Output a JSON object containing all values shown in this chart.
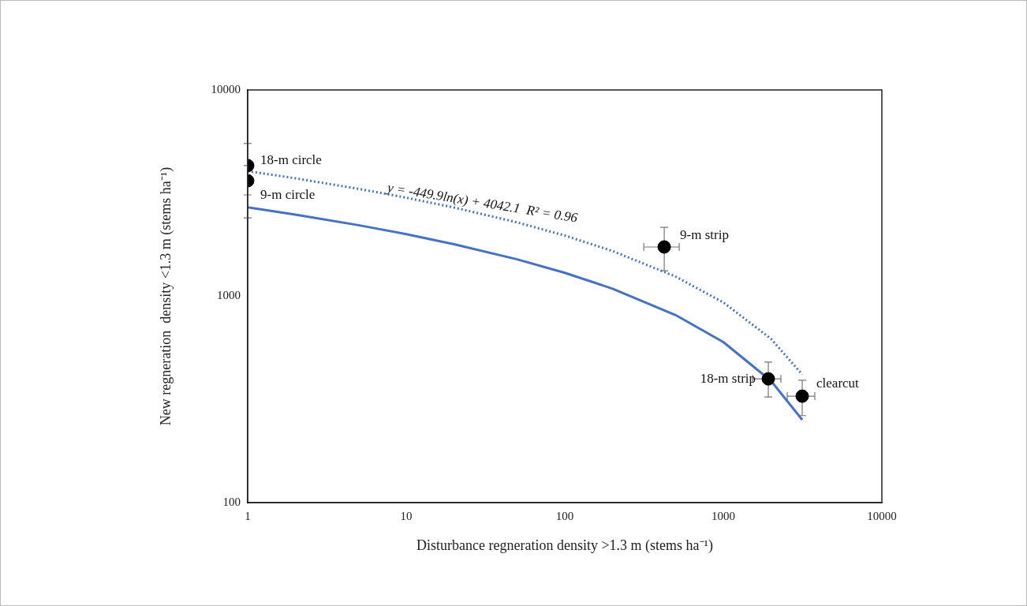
{
  "chart_data": {
    "type": "scatter",
    "xlabel": "Disturbance regneration density >1.3 m (stems ha⁻¹)",
    "ylabel": "New regneration  density <1.3 m (stems ha⁻¹)",
    "log": "xy",
    "grid": false,
    "legend": false,
    "xlim": [
      1,
      10000
    ],
    "xticks": [
      1,
      10,
      100,
      1000,
      10000
    ],
    "ylim": [
      100,
      10000
    ],
    "yticks": [
      100,
      1000,
      10000
    ],
    "series": [
      {
        "type": "line",
        "color": "#4472c4",
        "line_style": "dotted",
        "marker": "none",
        "x": [
          1,
          2,
          5,
          10,
          20,
          50,
          100,
          200,
          500,
          1000,
          2000,
          3146
        ],
        "values": [
          4042,
          3730,
          3318,
          3006,
          2694,
          2282,
          1970,
          1658,
          1246,
          934,
          622,
          418
        ]
      },
      {
        "type": "line",
        "color": "#4472c4",
        "line_style": "solid",
        "marker": "none",
        "x": [
          1,
          2,
          5,
          10,
          20,
          50,
          100,
          200,
          500,
          1000,
          2000,
          3146
        ],
        "values": [
          2700,
          2489,
          2211,
          2000,
          1789,
          1511,
          1300,
          1089,
          811,
          600,
          389,
          252
        ]
      },
      {
        "color": "#000000",
        "marker": "circle",
        "x": [
          1,
          1,
          424,
          1922,
          3146
        ],
        "values": [
          4300,
          3630,
          1734,
          398,
          328
        ],
        "errors": [
          [
            3100,
            5500
          ],
          [
            2400,
            4300
          ],
          [
            1330,
            2160
          ],
          [
            325,
            480
          ],
          [
            264,
            392
          ]
        ],
        "xerrors": [
          null,
          null,
          [
            315,
            527
          ],
          [
            1528,
            2307
          ],
          [
            2530,
            3776
          ]
        ]
      }
    ],
    "annotations": [
      {
        "text": "18-m circle",
        "x": 1,
        "y": 4300
      },
      {
        "text": "9-m circle",
        "x": 1,
        "y": 3630
      },
      {
        "text": "9-m strip",
        "x": 424,
        "y": 1734
      },
      {
        "text": "18-m strip",
        "x": 1922,
        "y": 398
      },
      {
        "text": "clearcut",
        "x": 3146,
        "y": 328
      },
      "y = -449.9ln(x) + 4042.1  R² = 0.96"
    ]
  }
}
